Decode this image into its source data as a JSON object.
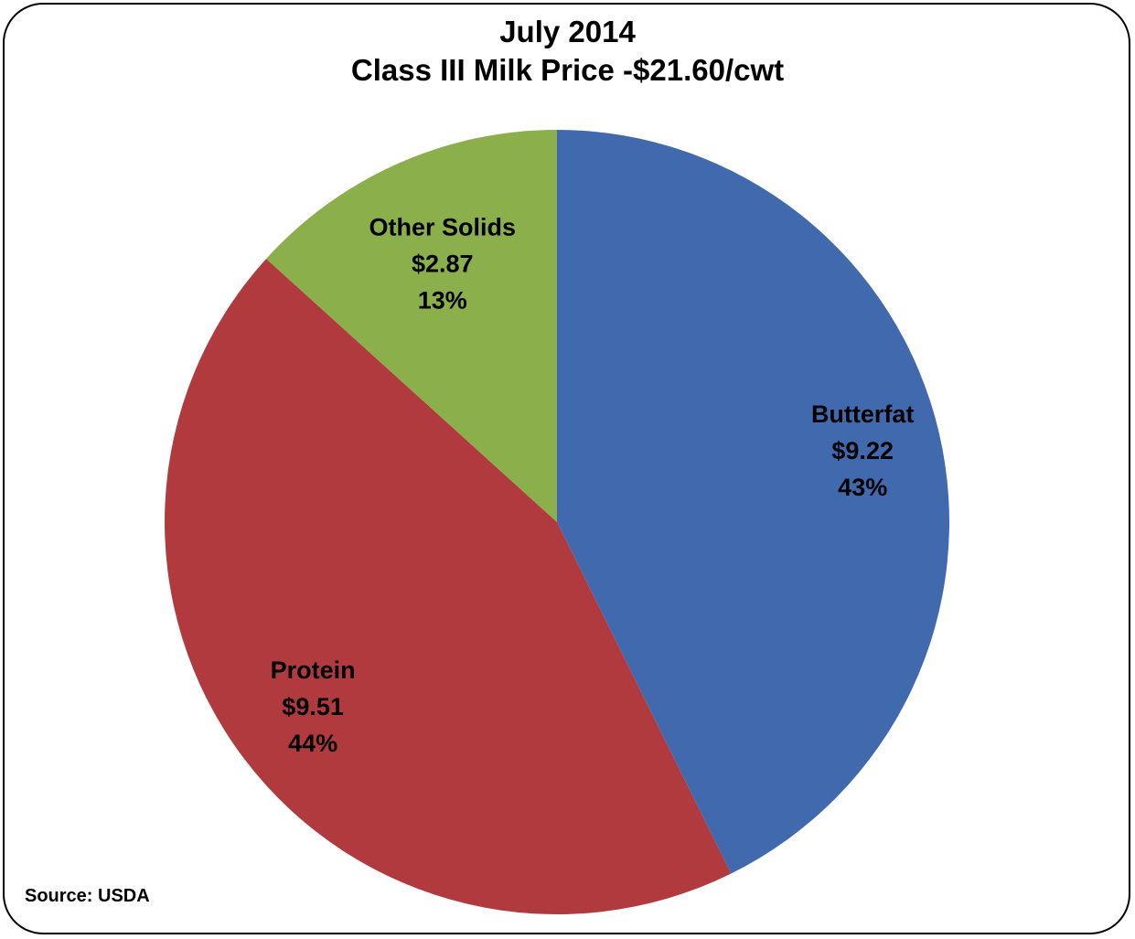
{
  "chart_data": {
    "type": "pie",
    "title": "July 2014",
    "subtitle": "Class III Milk Price -$21.60/cwt",
    "slices": [
      {
        "name": "Butterfat",
        "value": 9.22,
        "value_label": "$9.22",
        "percent_label": "43%",
        "color": "#4169AE"
      },
      {
        "name": "Protein",
        "value": 9.51,
        "value_label": "$9.51",
        "percent_label": "44%",
        "color": "#B03A3E"
      },
      {
        "name": "Other Solids",
        "value": 2.87,
        "value_label": "$2.87",
        "percent_label": "13%",
        "color": "#8BAF4A"
      }
    ],
    "start_angle": "12 o'clock",
    "direction": "clockwise",
    "legend": "none"
  },
  "source_note": "Source: USDA"
}
